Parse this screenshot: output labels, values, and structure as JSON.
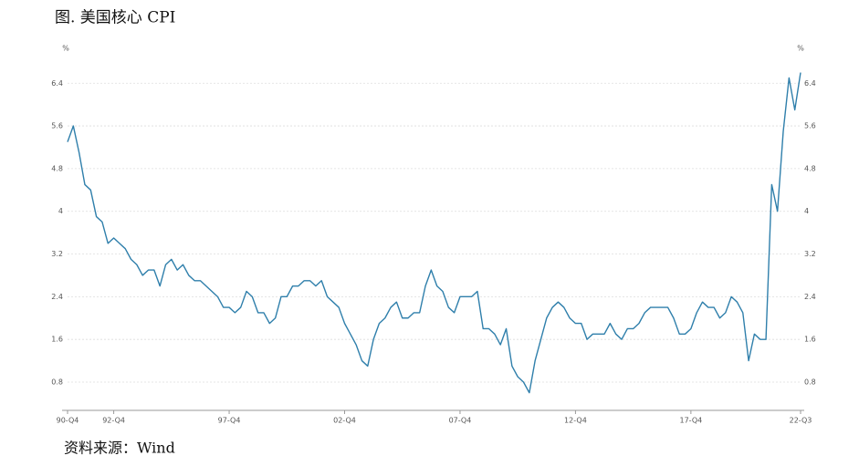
{
  "chart_data": {
    "type": "line",
    "title": "图. 美国核心 CPI",
    "y_unit": "%",
    "source": "资料来源：Wind",
    "categories": [
      "90-Q4",
      null,
      null,
      null,
      null,
      null,
      null,
      null,
      "92-Q4",
      null,
      null,
      null,
      null,
      null,
      null,
      null,
      null,
      null,
      null,
      null,
      null,
      null,
      null,
      null,
      null,
      null,
      null,
      null,
      "97-Q4",
      null,
      null,
      null,
      null,
      null,
      null,
      null,
      null,
      null,
      null,
      null,
      null,
      null,
      null,
      null,
      null,
      null,
      null,
      null,
      "02-Q4",
      null,
      null,
      null,
      null,
      null,
      null,
      null,
      null,
      null,
      null,
      null,
      null,
      null,
      null,
      null,
      null,
      null,
      null,
      null,
      "07-Q4",
      null,
      null,
      null,
      null,
      null,
      null,
      null,
      null,
      null,
      null,
      null,
      null,
      null,
      null,
      null,
      null,
      null,
      null,
      null,
      "12-Q4",
      null,
      null,
      null,
      null,
      null,
      null,
      null,
      null,
      null,
      null,
      null,
      null,
      null,
      null,
      null,
      null,
      null,
      null,
      null,
      "17-Q4",
      null,
      null,
      null,
      null,
      null,
      null,
      null,
      null,
      null,
      null,
      null,
      null,
      null,
      null,
      null,
      null,
      null,
      null,
      "22-Q3"
    ],
    "values": [
      5.3,
      5.6,
      5.1,
      4.5,
      4.4,
      3.9,
      3.8,
      3.4,
      3.5,
      3.4,
      3.3,
      3.1,
      3.0,
      2.8,
      2.9,
      2.9,
      2.6,
      3.0,
      3.1,
      2.9,
      3.0,
      2.8,
      2.7,
      2.7,
      2.6,
      2.5,
      2.4,
      2.2,
      2.2,
      2.1,
      2.2,
      2.5,
      2.4,
      2.1,
      2.1,
      1.9,
      2.0,
      2.4,
      2.4,
      2.6,
      2.6,
      2.7,
      2.7,
      2.6,
      2.7,
      2.4,
      2.3,
      2.2,
      1.9,
      1.7,
      1.5,
      1.2,
      1.1,
      1.6,
      1.9,
      2.0,
      2.2,
      2.3,
      2.0,
      2.0,
      2.1,
      2.1,
      2.6,
      2.9,
      2.6,
      2.5,
      2.2,
      2.1,
      2.4,
      2.4,
      2.4,
      2.5,
      1.8,
      1.8,
      1.7,
      1.5,
      1.8,
      1.1,
      0.9,
      0.8,
      0.6,
      1.2,
      1.6,
      2.0,
      2.2,
      2.3,
      2.2,
      2.0,
      1.9,
      1.9,
      1.6,
      1.7,
      1.7,
      1.7,
      1.9,
      1.7,
      1.6,
      1.8,
      1.8,
      1.9,
      2.1,
      2.2,
      2.2,
      2.2,
      2.2,
      2.0,
      1.7,
      1.7,
      1.8,
      2.1,
      2.3,
      2.2,
      2.2,
      2.0,
      2.1,
      2.4,
      2.3,
      2.1,
      1.2,
      1.7,
      1.6,
      1.6,
      4.5,
      4.0,
      5.5,
      6.5,
      5.9,
      6.6
    ],
    "color": "#2f7fab",
    "ylim": [
      0.27,
      6.9
    ],
    "yticks": [
      0.8,
      1.6,
      2.4,
      3.2,
      4,
      4.8,
      5.6,
      6.4
    ],
    "grid": true
  }
}
